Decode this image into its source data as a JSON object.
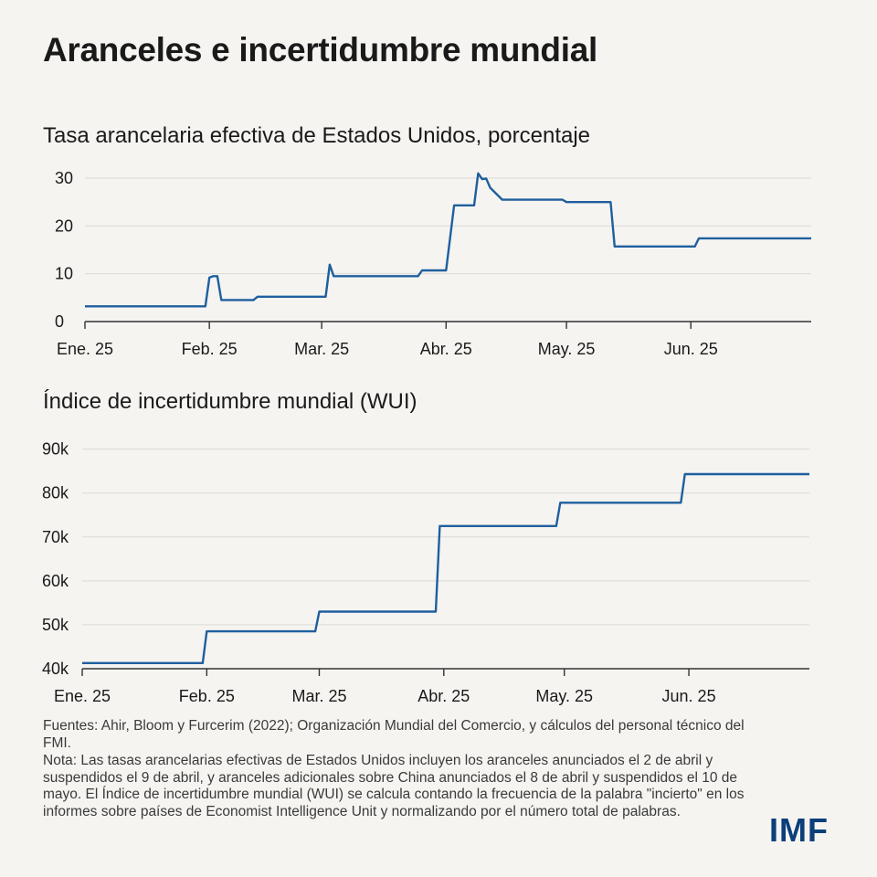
{
  "title": "Aranceles e incertidumbre mundial",
  "chart_data": [
    {
      "type": "line",
      "title": "Tasa arancelaria efectiva de Estados Unidos, porcentaje",
      "x_tick_labels": [
        "Ene. 25",
        "Feb. 25",
        "Mar. 25",
        "Abr. 25",
        "May. 25",
        "Jun. 25"
      ],
      "x_domain": [
        "2025-01-01",
        "2025-07-01"
      ],
      "y_ticks": [
        0,
        10,
        20,
        30
      ],
      "y_tick_labels": [
        "0",
        "10",
        "20",
        "30"
      ],
      "ylim": [
        0,
        30
      ],
      "grid": true,
      "color": "#1f5f9e",
      "series": [
        {
          "x": [
            "2025-01-01",
            "2025-01-31",
            "2025-02-01",
            "2025-02-02",
            "2025-02-03",
            "2025-02-04",
            "2025-02-12",
            "2025-02-13",
            "2025-03-01",
            "2025-03-02",
            "2025-03-03",
            "2025-03-04",
            "2025-03-25",
            "2025-03-26",
            "2025-04-01",
            "2025-04-03",
            "2025-04-08",
            "2025-04-09",
            "2025-04-10",
            "2025-04-11",
            "2025-04-12",
            "2025-04-15",
            "2025-04-30",
            "2025-05-01",
            "2025-05-12",
            "2025-05-13",
            "2025-06-02",
            "2025-06-03",
            "2025-07-01"
          ],
          "values": [
            3.2,
            3.2,
            9.2,
            9.5,
            9.5,
            4.5,
            4.5,
            5.2,
            5.2,
            5.2,
            11.9,
            9.5,
            9.5,
            10.7,
            10.7,
            24.3,
            24.3,
            31.0,
            29.8,
            29.9,
            28.0,
            25.5,
            25.5,
            25.0,
            25.0,
            15.7,
            15.7,
            17.4,
            17.4
          ]
        }
      ]
    },
    {
      "type": "line",
      "title": "Índice de incertidumbre mundial (WUI)",
      "x_tick_labels": [
        "Ene. 25",
        "Feb. 25",
        "Mar. 25",
        "Abr. 25",
        "May. 25",
        "Jun. 25"
      ],
      "x_domain": [
        "2025-01-01",
        "2025-07-01"
      ],
      "y_ticks": [
        40000,
        50000,
        60000,
        70000,
        80000,
        90000
      ],
      "y_tick_labels": [
        "40k",
        "50k",
        "60k",
        "70k",
        "80k",
        "90k"
      ],
      "ylim": [
        40000,
        92000
      ],
      "grid": true,
      "color": "#1f5f9e",
      "series": [
        {
          "x": [
            "2025-01-01",
            "2025-01-31",
            "2025-02-01",
            "2025-02-28",
            "2025-03-01",
            "2025-03-30",
            "2025-03-31",
            "2025-04-29",
            "2025-04-30",
            "2025-05-30",
            "2025-05-31",
            "2025-07-01"
          ],
          "values": [
            41300,
            41300,
            48500,
            48500,
            53000,
            53000,
            72500,
            72500,
            77800,
            77800,
            84300,
            84300
          ]
        }
      ]
    }
  ],
  "footnotes": {
    "sources": "Fuentes: Ahir, Bloom y Furcerim (2022); Organización Mundial del Comercio, y cálculos del personal técnico del FMI.",
    "note": "Nota: Las tasas arancelarias efectivas de Estados Unidos incluyen los aranceles anunciados el 2 de abril y suspendidos el 9 de abril, y aranceles adicionales sobre China anunciados el 8 de abril y suspendidos el 10 de mayo. El Índice de incertidumbre mundial (WUI) se calcula contando la frecuencia de la palabra \"incierto\" en los informes sobre países de Economist Intelligence Unit y normalizando por el número total de palabras."
  },
  "logo": "IMF"
}
